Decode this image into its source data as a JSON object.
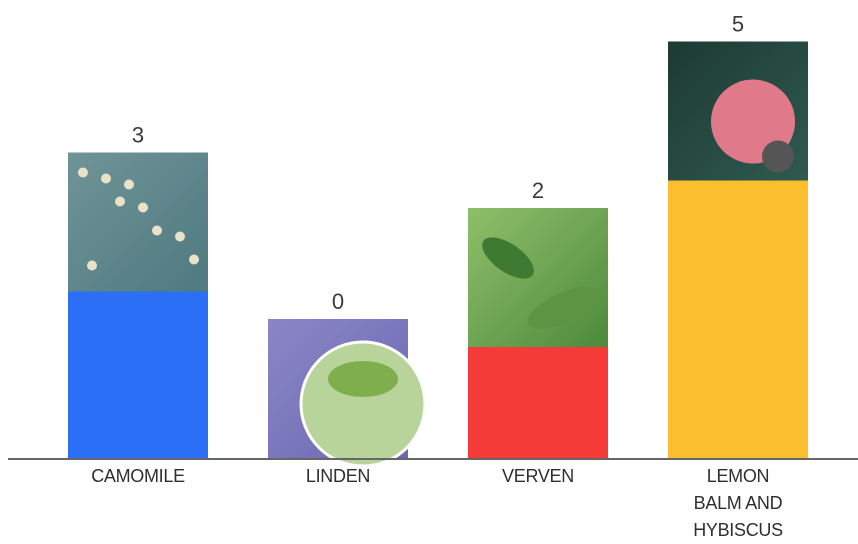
{
  "chart_data": {
    "type": "bar",
    "categories": [
      "CAMOMILE",
      "LINDEN",
      "VERVEN",
      "LEMON BALM AND HYBISCUS"
    ],
    "values": [
      3,
      0,
      2,
      5
    ],
    "colors": [
      "#2a6ff5",
      "#8a86c8",
      "#f43b38",
      "#fbbe2e"
    ]
  }
}
